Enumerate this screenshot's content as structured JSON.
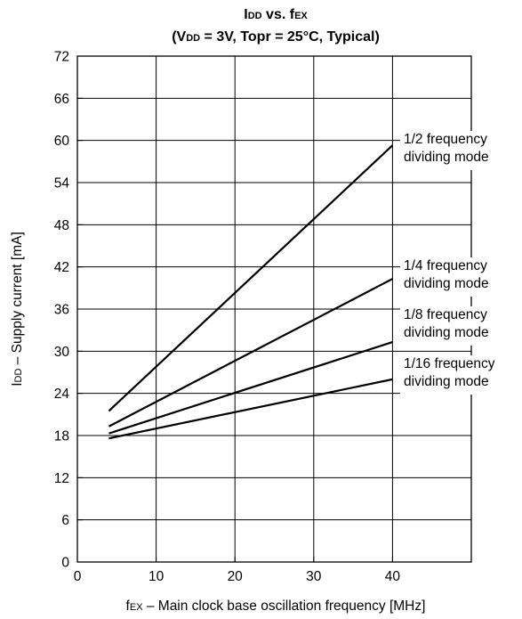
{
  "chart_data": {
    "type": "line",
    "title": {
      "main": "I",
      "main_sub": "DD",
      "mid": " vs. f",
      "mid_sub": "EX"
    },
    "subtitle": {
      "p1": "(V",
      "p1_sub": "DD",
      "p2": " = 3V, Topr = 25°C, Typical)"
    },
    "xlabel": {
      "main": "f",
      "sub": "EX",
      "rest": " – Main clock base oscillation frequency [MHz]"
    },
    "ylabel": {
      "main": "I",
      "sub": "DD",
      "rest": " – Supply current [mA]"
    },
    "xlim": [
      0,
      50
    ],
    "ylim": [
      0,
      72
    ],
    "x_ticks": [
      0,
      10,
      20,
      30,
      40
    ],
    "y_ticks": [
      0,
      6,
      12,
      18,
      24,
      30,
      36,
      42,
      48,
      54,
      60,
      66,
      72
    ],
    "x_gridlines": [
      10,
      20,
      30,
      40
    ],
    "y_gridlines": [
      6,
      12,
      18,
      24,
      30,
      36,
      42,
      48,
      54,
      60,
      66
    ],
    "grid": true,
    "series": [
      {
        "label_line1": "1/2 frequency",
        "label_line2": "dividing mode",
        "x": [
          4,
          40
        ],
        "y": [
          21.5,
          59.3
        ]
      },
      {
        "label_line1": "1/4 frequency",
        "label_line2": "dividing mode",
        "x": [
          4,
          40
        ],
        "y": [
          19.3,
          40.3
        ]
      },
      {
        "label_line1": "1/8 frequency",
        "label_line2": "dividing mode",
        "x": [
          4,
          40
        ],
        "y": [
          18.3,
          31.3
        ]
      },
      {
        "label_line1": "1/16 frequency",
        "label_line2": "dividing mode",
        "x": [
          4,
          40
        ],
        "y": [
          17.6,
          26.0
        ]
      }
    ]
  }
}
